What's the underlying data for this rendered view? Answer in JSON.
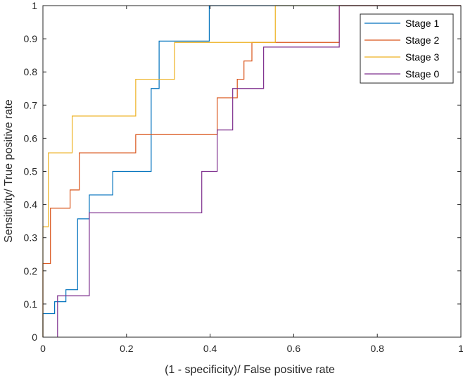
{
  "chart_data": {
    "type": "line",
    "title": "",
    "xlabel": "(1 - specificity)/ False positive rate",
    "ylabel": "Sensitivity/ True positive rate",
    "xlim": [
      0,
      1
    ],
    "ylim": [
      0,
      1
    ],
    "xticks": [
      0,
      0.2,
      0.4,
      0.6,
      0.8,
      1
    ],
    "yticks": [
      0,
      0.1,
      0.2,
      0.3,
      0.4,
      0.5,
      0.6,
      0.7,
      0.8,
      0.9,
      1
    ],
    "xtick_labels": [
      "0",
      "0.2",
      "0.4",
      "0.6",
      "0.8",
      "1"
    ],
    "ytick_labels": [
      "0",
      "0.1",
      "0.2",
      "0.3",
      "0.4",
      "0.5",
      "0.6",
      "0.7",
      "0.8",
      "0.9",
      "1"
    ],
    "grid": false,
    "legend_position": "top-right",
    "series": [
      {
        "name": "Stage 1",
        "color": "#0072BD",
        "x": [
          0,
          0,
          0.028,
          0.028,
          0.055,
          0.055,
          0.083,
          0.083,
          0.111,
          0.111,
          0.167,
          0.167,
          0.222,
          0.222,
          0.259,
          0.259,
          0.278,
          0.278,
          0.398,
          0.398,
          0.709,
          0.709,
          1
        ],
        "y": [
          0,
          0.071,
          0.071,
          0.107,
          0.107,
          0.143,
          0.143,
          0.357,
          0.357,
          0.429,
          0.429,
          0.5,
          0.5,
          0.5,
          0.5,
          0.75,
          0.75,
          0.893,
          0.893,
          1,
          1,
          1,
          1
        ]
      },
      {
        "name": "Stage 2",
        "color": "#D95319",
        "x": [
          0,
          0,
          0.018,
          0.018,
          0.065,
          0.065,
          0.087,
          0.087,
          0.222,
          0.222,
          0.417,
          0.417,
          0.444,
          0.444,
          0.465,
          0.465,
          0.481,
          0.481,
          0.5,
          0.5,
          0.513,
          0.513,
          0.709,
          0.709,
          1
        ],
        "y": [
          0,
          0.222,
          0.222,
          0.389,
          0.389,
          0.444,
          0.444,
          0.556,
          0.556,
          0.611,
          0.611,
          0.722,
          0.722,
          0.722,
          0.722,
          0.778,
          0.778,
          0.833,
          0.833,
          0.889,
          0.889,
          0.889,
          0.889,
          1,
          1
        ]
      },
      {
        "name": "Stage 3",
        "color": "#EDB120",
        "x": [
          0,
          0,
          0.013,
          0.013,
          0.07,
          0.07,
          0.222,
          0.222,
          0.315,
          0.315,
          0.556,
          0.556,
          1
        ],
        "y": [
          0,
          0.333,
          0.333,
          0.556,
          0.556,
          0.667,
          0.667,
          0.778,
          0.778,
          0.889,
          0.889,
          1,
          1
        ]
      },
      {
        "name": "Stage 0",
        "color": "#7E2F8E",
        "x": [
          0.035,
          0.035,
          0.111,
          0.111,
          0.38,
          0.38,
          0.417,
          0.417,
          0.454,
          0.454,
          0.528,
          0.528,
          0.709,
          0.709,
          1
        ],
        "y": [
          0,
          0.125,
          0.125,
          0.375,
          0.375,
          0.5,
          0.5,
          0.625,
          0.625,
          0.75,
          0.75,
          0.875,
          0.875,
          1,
          1
        ]
      }
    ]
  }
}
